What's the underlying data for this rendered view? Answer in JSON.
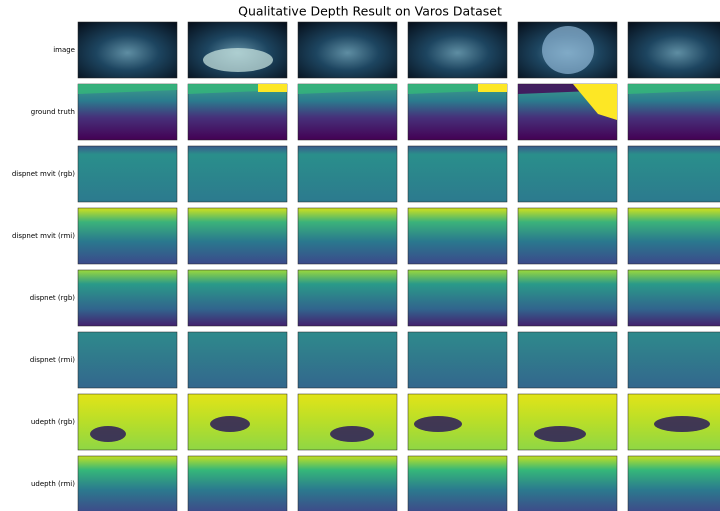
{
  "title": "Qualitative Depth Result on Varos Dataset",
  "rows": [
    {
      "label": "image"
    },
    {
      "label": "ground truth"
    },
    {
      "label": "dispnet mvit (rgb)"
    },
    {
      "label": "dispnet mvit (rmi)"
    },
    {
      "label": "dispnet (rgb)"
    },
    {
      "label": "dispnet (rmi)"
    },
    {
      "label": "udepth (rgb)"
    },
    {
      "label": "udepth (rmi)"
    }
  ]
}
